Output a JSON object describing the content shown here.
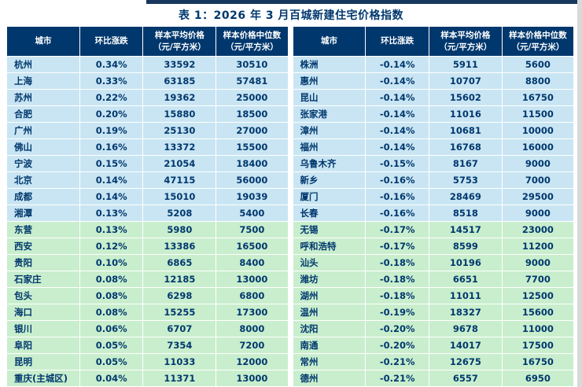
{
  "title": "表 1：2026 年 3 月百城新建住宅价格指数",
  "headers": [
    "城市",
    "环比涨跌",
    "样本平均价格\n（元/平方米）",
    "样本价格中位数\n（元/平方米）"
  ],
  "left_table": {
    "rows": [
      {
        "city": "杭州",
        "change": "0.34%",
        "avg_price": "33592",
        "median_price": "30510"
      },
      {
        "city": "上海",
        "change": "0.33%",
        "avg_price": "63185",
        "median_price": "57481"
      },
      {
        "city": "苏州",
        "change": "0.22%",
        "avg_price": "19362",
        "median_price": "25000"
      },
      {
        "city": "合肥",
        "change": "0.20%",
        "avg_price": "15880",
        "median_price": "18500"
      },
      {
        "city": "广州",
        "change": "0.19%",
        "avg_price": "25130",
        "median_price": "27000"
      },
      {
        "city": "佛山",
        "change": "0.16%",
        "avg_price": "13372",
        "median_price": "15500"
      },
      {
        "city": "宁波",
        "change": "0.15%",
        "avg_price": "21054",
        "median_price": "18400"
      },
      {
        "city": "北京",
        "change": "0.14%",
        "avg_price": "47115",
        "median_price": "56000"
      },
      {
        "city": "成都",
        "change": "0.14%",
        "avg_price": "15010",
        "median_price": "19039"
      },
      {
        "city": "湘潭",
        "change": "0.13%",
        "avg_price": "5208",
        "median_price": "5400"
      },
      {
        "city": "东营",
        "change": "0.13%",
        "avg_price": "5980",
        "median_price": "7500"
      },
      {
        "city": "西安",
        "change": "0.12%",
        "avg_price": "13386",
        "median_price": "16500"
      },
      {
        "city": "贵阳",
        "change": "0.10%",
        "avg_price": "6865",
        "median_price": "8400"
      },
      {
        "city": "石家庄",
        "change": "0.08%",
        "avg_price": "12185",
        "median_price": "13000"
      },
      {
        "city": "包头",
        "change": "0.08%",
        "avg_price": "6298",
        "median_price": "6800"
      },
      {
        "city": "海口",
        "change": "0.08%",
        "avg_price": "15255",
        "median_price": "17300"
      },
      {
        "city": "银川",
        "change": "0.06%",
        "avg_price": "6707",
        "median_price": "8000"
      },
      {
        "city": "阜阳",
        "change": "0.05%",
        "avg_price": "7354",
        "median_price": "7200"
      },
      {
        "city": "昆明",
        "change": "0.05%",
        "avg_price": "11033",
        "median_price": "12000"
      },
      {
        "city": "重庆(主城区)",
        "change": "0.04%",
        "avg_price": "11371",
        "median_price": "13000"
      }
    ]
  },
  "right_table": {
    "rows": [
      {
        "city": "株洲",
        "change": "-0.14%",
        "avg_price": "5911",
        "median_price": "5600"
      },
      {
        "city": "惠州",
        "change": "-0.14%",
        "avg_price": "10707",
        "median_price": "8800"
      },
      {
        "city": "昆山",
        "change": "-0.14%",
        "avg_price": "15602",
        "median_price": "16750"
      },
      {
        "city": "张家港",
        "change": "-0.14%",
        "avg_price": "11016",
        "median_price": "11500"
      },
      {
        "city": "漳州",
        "change": "-0.14%",
        "avg_price": "10681",
        "median_price": "10000"
      },
      {
        "city": "福州",
        "change": "-0.14%",
        "avg_price": "16768",
        "median_price": "16000"
      },
      {
        "city": "乌鲁木齐",
        "change": "-0.15%",
        "avg_price": "8167",
        "median_price": "9000"
      },
      {
        "city": "新乡",
        "change": "-0.16%",
        "avg_price": "5753",
        "median_price": "7000"
      },
      {
        "city": "厦门",
        "change": "-0.16%",
        "avg_price": "28469",
        "median_price": "29500"
      },
      {
        "city": "长春",
        "change": "-0.16%",
        "avg_price": "8518",
        "median_price": "9000"
      },
      {
        "city": "无锡",
        "change": "-0.17%",
        "avg_price": "14517",
        "median_price": "23000"
      },
      {
        "city": "呼和浩特",
        "change": "-0.17%",
        "avg_price": "8599",
        "median_price": "11200"
      },
      {
        "city": "汕头",
        "change": "-0.18%",
        "avg_price": "10196",
        "median_price": "9000"
      },
      {
        "city": "潍坊",
        "change": "-0.18%",
        "avg_price": "6651",
        "median_price": "7700"
      },
      {
        "city": "湖州",
        "change": "-0.18%",
        "avg_price": "11011",
        "median_price": "12500"
      },
      {
        "city": "温州",
        "change": "-0.19%",
        "avg_price": "18327",
        "median_price": "15600"
      },
      {
        "city": "沈阳",
        "change": "-0.20%",
        "avg_price": "9678",
        "median_price": "11000"
      },
      {
        "city": "南通",
        "change": "-0.20%",
        "avg_price": "14017",
        "median_price": "17500"
      },
      {
        "city": "常州",
        "change": "-0.21%",
        "avg_price": "12675",
        "median_price": "16750"
      },
      {
        "city": "德州",
        "change": "-0.21%",
        "avg_price": "6557",
        "median_price": "6950"
      }
    ]
  },
  "colors": {
    "header_bg": "#00386e",
    "row_blue": "#c9e5f3",
    "row_green": "#c9eecd",
    "cell_text": "#00386e",
    "title_text": "#00386e",
    "top_strip": "#17375e"
  }
}
